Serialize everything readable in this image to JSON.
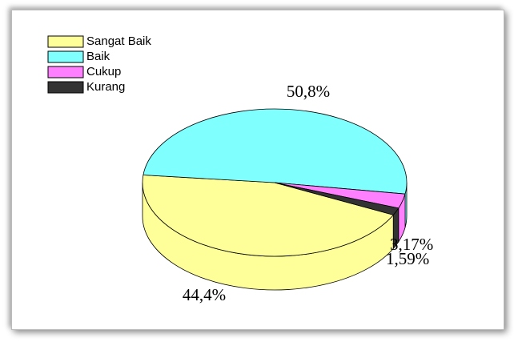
{
  "chart_data": {
    "type": "pie",
    "categories": [
      "Sangat Baik",
      "Baik",
      "Cukup",
      "Kurang"
    ],
    "values": [
      44.4,
      50.8,
      3.17,
      1.59
    ],
    "value_labels": [
      "44,4%",
      "50,8%",
      "3,17%",
      "1,59%"
    ],
    "colors": [
      "#ffff99",
      "#80ffff",
      "#ff80ff",
      "#333333"
    ]
  }
}
